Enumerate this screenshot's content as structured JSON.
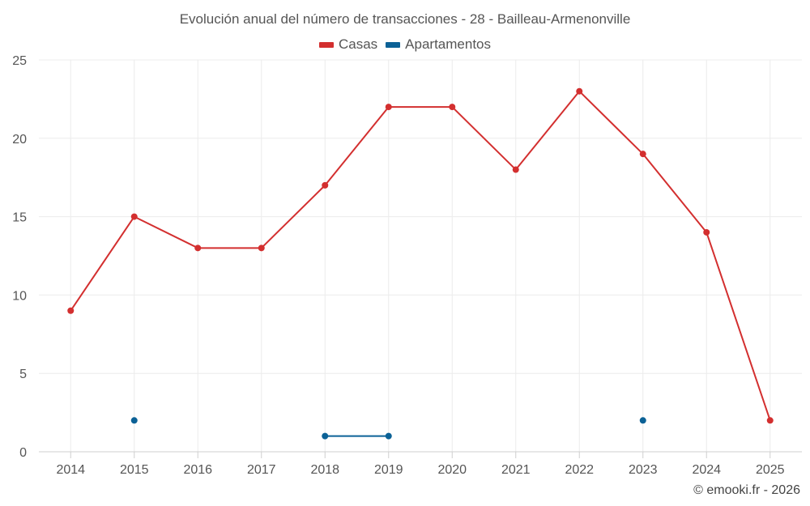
{
  "chart_data": {
    "type": "line",
    "title": "Evolución anual del número de transacciones - 28 - Bailleau-Armenonville",
    "categories": [
      "2014",
      "2015",
      "2016",
      "2017",
      "2018",
      "2019",
      "2020",
      "2021",
      "2022",
      "2023",
      "2024",
      "2025"
    ],
    "ylim": [
      0,
      25
    ],
    "yticks": [
      0,
      5,
      10,
      15,
      20,
      25
    ],
    "grid": true,
    "legend_position": "top-center",
    "series": [
      {
        "name": "Casas",
        "color": "#d32f2f",
        "values": [
          9,
          15,
          13,
          13,
          17,
          22,
          22,
          18,
          23,
          19,
          14,
          2
        ]
      },
      {
        "name": "Apartamentos",
        "color": "#0b6196",
        "values": [
          null,
          2,
          null,
          null,
          1,
          1,
          null,
          null,
          null,
          2,
          null,
          null
        ]
      }
    ]
  },
  "credit": "© emooki.fr - 2026"
}
